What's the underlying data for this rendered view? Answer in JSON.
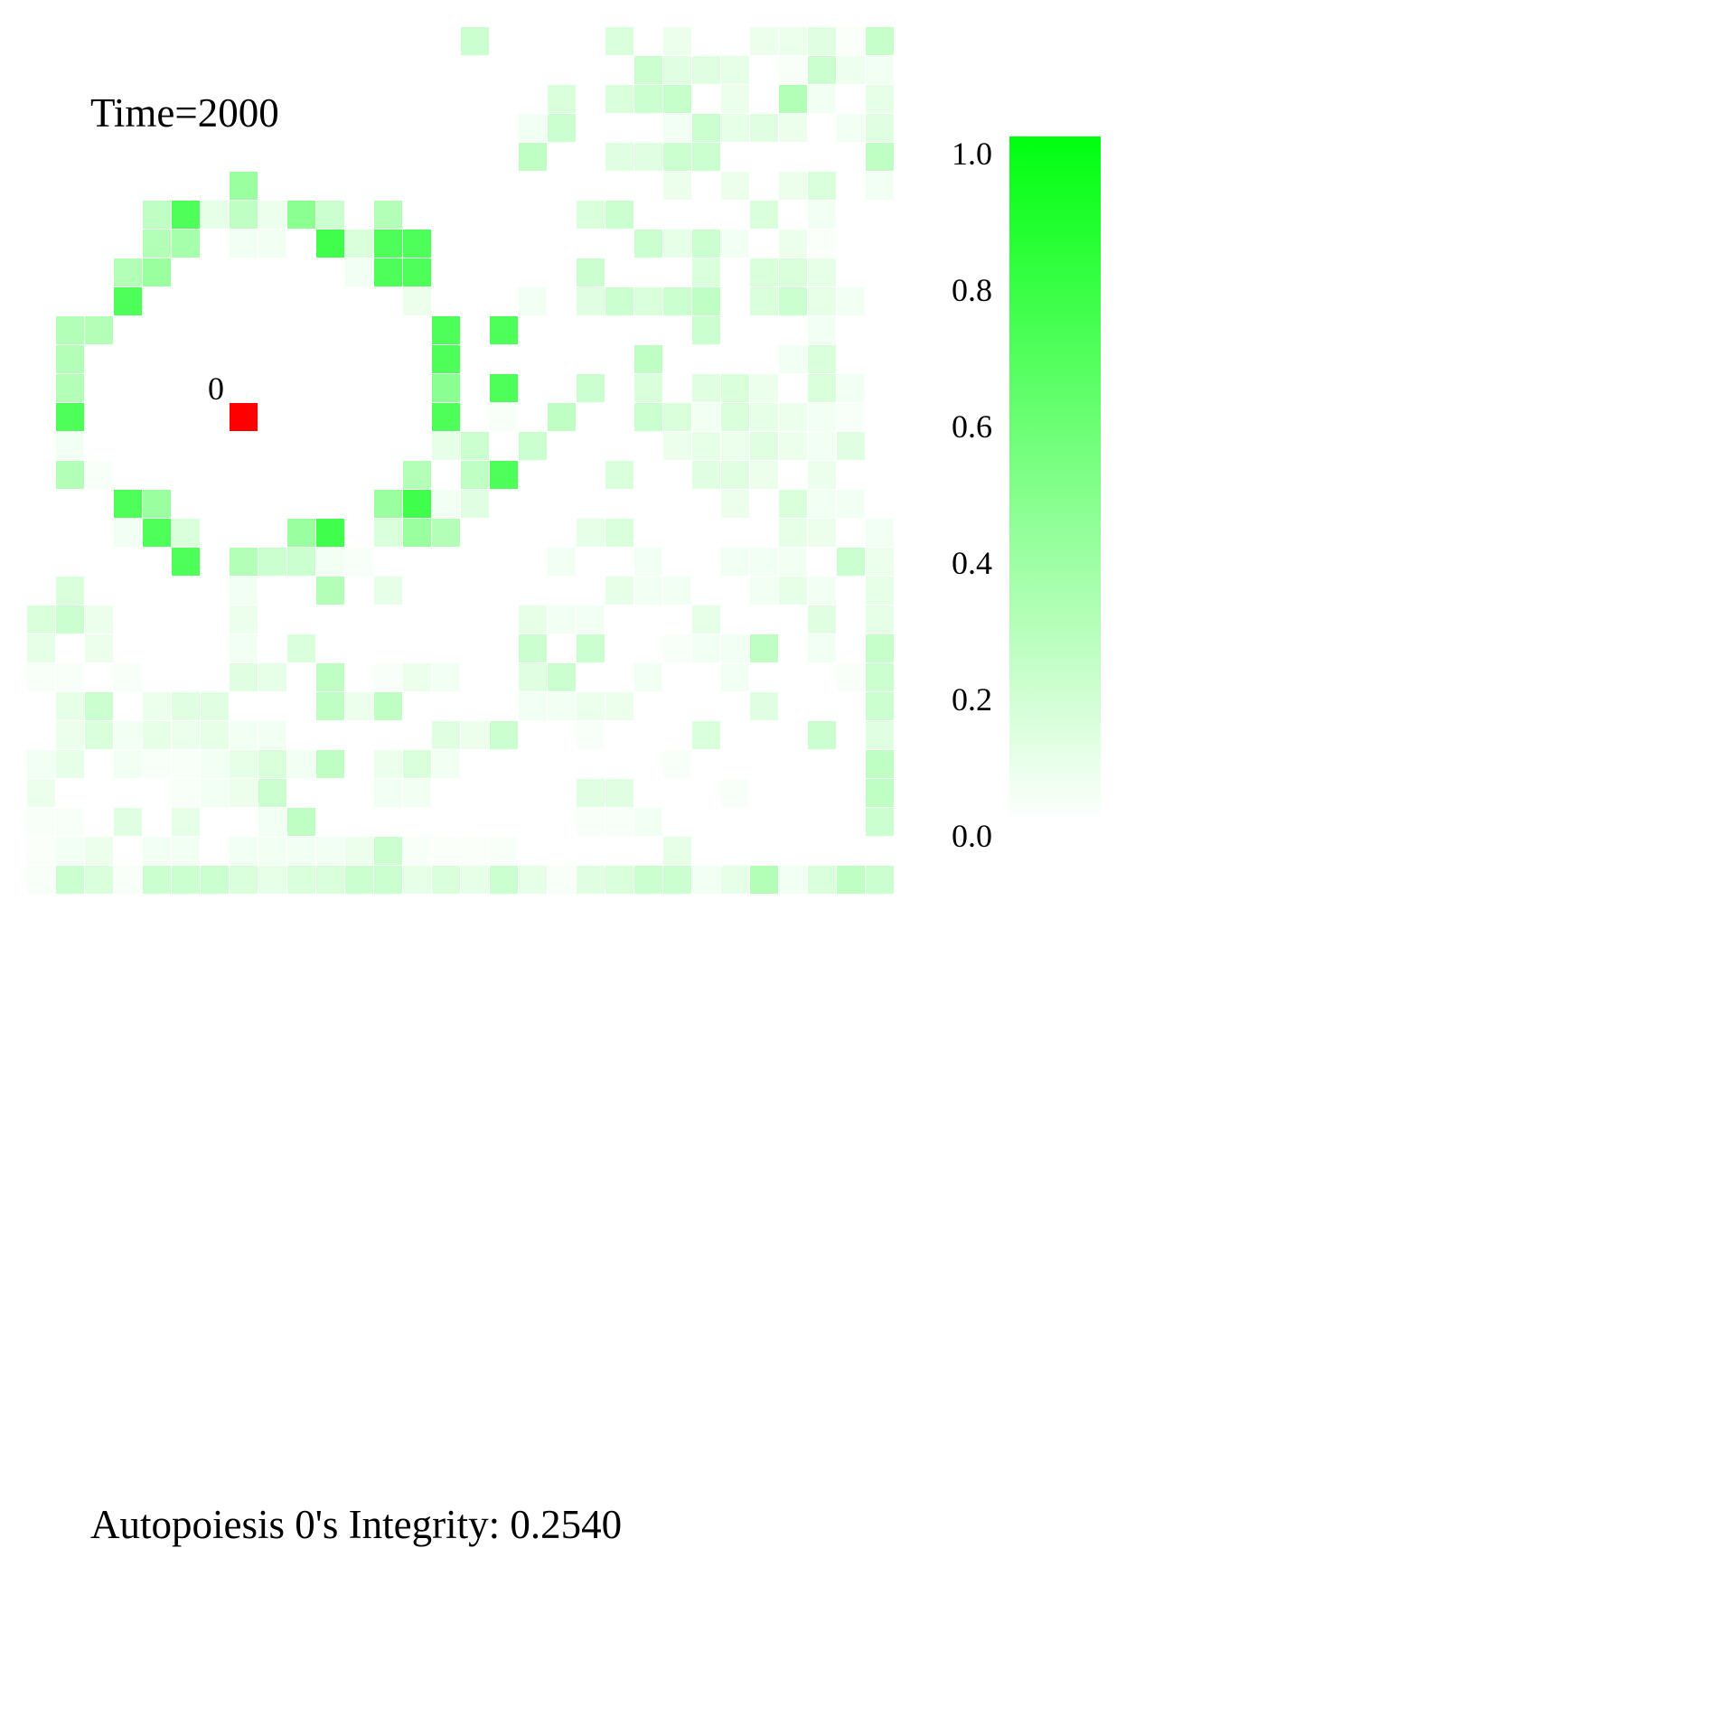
{
  "time_label": "Time=2000",
  "integrity_label": "Autopoiesis 0's Integrity: 0.2540",
  "chart_data": {
    "type": "heatmap",
    "title": "Time=2000",
    "grid": {
      "rows": 30,
      "cols": 30
    },
    "value_range": [
      0.0,
      1.0
    ],
    "colorbar": {
      "ticks": [
        0.0,
        0.2,
        0.4,
        0.6,
        0.8,
        1.0
      ],
      "tick_labels": [
        "0.0",
        "0.2",
        "0.4",
        "0.6",
        "0.8",
        "1.0"
      ],
      "color_low": "#ffffff",
      "color_high": "#00ff10"
    },
    "agents": [
      {
        "label": "0",
        "row": 13,
        "col": 7,
        "color": "#ff0000"
      }
    ],
    "values": [
      [
        0,
        0,
        0,
        0,
        0,
        0,
        0,
        0,
        0,
        0,
        0,
        0,
        0,
        0,
        0,
        0.2,
        0,
        0,
        0,
        0,
        0.15,
        0,
        0.08,
        0,
        0,
        0.08,
        0.08,
        0.12,
        0.02,
        0.22
      ],
      [
        0,
        0,
        0,
        0,
        0,
        0,
        0,
        0,
        0,
        0,
        0,
        0,
        0,
        0,
        0,
        0,
        0,
        0,
        0,
        0,
        0,
        0.2,
        0.12,
        0.12,
        0.1,
        0,
        0.03,
        0.2,
        0.07,
        0.05
      ],
      [
        0,
        0,
        0,
        0,
        0,
        0,
        0,
        0,
        0,
        0,
        0,
        0,
        0,
        0,
        0,
        0,
        0,
        0,
        0.15,
        0,
        0.15,
        0.2,
        0.22,
        0,
        0.08,
        0,
        0.3,
        0.05,
        0,
        0.1
      ],
      [
        0,
        0,
        0,
        0,
        0,
        0,
        0,
        0,
        0,
        0,
        0,
        0,
        0,
        0,
        0,
        0,
        0,
        0.05,
        0.2,
        0,
        0,
        0,
        0.05,
        0.2,
        0.1,
        0.12,
        0.08,
        0,
        0.05,
        0.12
      ],
      [
        0,
        0,
        0,
        0,
        0,
        0,
        0,
        0,
        0,
        0,
        0,
        0,
        0,
        0,
        0,
        0,
        0,
        0.25,
        0,
        0,
        0.12,
        0.12,
        0.2,
        0.2,
        0,
        0,
        0,
        0,
        0,
        0.25
      ],
      [
        0,
        0,
        0,
        0,
        0,
        0,
        0,
        0.4,
        0,
        0,
        0,
        0,
        0,
        0,
        0,
        0,
        0,
        0,
        0,
        0,
        0,
        0,
        0.08,
        0,
        0.08,
        0,
        0.08,
        0.15,
        0,
        0.05
      ],
      [
        0,
        0,
        0,
        0,
        0.25,
        0.7,
        0.1,
        0.25,
        0.08,
        0.45,
        0.2,
        0,
        0.3,
        0,
        0,
        0,
        0,
        0,
        0,
        0.15,
        0.2,
        0,
        0,
        0,
        0,
        0.15,
        0,
        0.05,
        0,
        0
      ],
      [
        0,
        0,
        0,
        0,
        0.3,
        0.35,
        0,
        0.05,
        0.05,
        0,
        0.75,
        0.15,
        0.7,
        0.7,
        0,
        0,
        0,
        0,
        0,
        0,
        0,
        0.2,
        0.1,
        0.2,
        0.05,
        0,
        0.08,
        0.02,
        0,
        0
      ],
      [
        0,
        0,
        0,
        0.3,
        0.4,
        0,
        0,
        0,
        0,
        0,
        0,
        0.05,
        0.7,
        0.7,
        0,
        0,
        0,
        0,
        0,
        0.2,
        0,
        0,
        0,
        0.15,
        0,
        0.15,
        0.15,
        0.1,
        0,
        0
      ],
      [
        0,
        0,
        0,
        0.7,
        0,
        0,
        0,
        0,
        0,
        0,
        0,
        0,
        0,
        0.08,
        0,
        0,
        0,
        0.05,
        0,
        0.12,
        0.2,
        0.15,
        0.2,
        0.25,
        0,
        0.15,
        0.2,
        0.1,
        0.05,
        0
      ],
      [
        0,
        0.3,
        0.3,
        0,
        0,
        0,
        0,
        0,
        0,
        0,
        0,
        0,
        0,
        0,
        0.7,
        0,
        0.7,
        0,
        0,
        0,
        0,
        0,
        0,
        0.2,
        0,
        0,
        0,
        0.05,
        0,
        0
      ],
      [
        0,
        0.3,
        0,
        0,
        0,
        0,
        0,
        0,
        0,
        0,
        0,
        0,
        0,
        0,
        0.7,
        0,
        0,
        0,
        0,
        0,
        0,
        0.25,
        0,
        0,
        0,
        0,
        0.05,
        0.15,
        0,
        0
      ],
      [
        0,
        0.3,
        0,
        0,
        0,
        0,
        0,
        0,
        0,
        0,
        0,
        0,
        0,
        0,
        0.45,
        0,
        0.7,
        0,
        0,
        0.2,
        0,
        0.15,
        0,
        0.12,
        0.15,
        0.08,
        0,
        0.15,
        0.05,
        0
      ],
      [
        0,
        0.7,
        0,
        0,
        0,
        0,
        0,
        0,
        0,
        0,
        0,
        0,
        0,
        0,
        0.7,
        0,
        0.03,
        0,
        0.25,
        0,
        0,
        0.2,
        0.15,
        0.05,
        0.15,
        0.1,
        0.08,
        0.05,
        0.03,
        0
      ],
      [
        0,
        0.05,
        0,
        0,
        0,
        0,
        0,
        0,
        0,
        0,
        0,
        0,
        0,
        0,
        0.1,
        0.2,
        0,
        0.2,
        0,
        0,
        0,
        0,
        0.08,
        0.1,
        0.08,
        0.12,
        0.08,
        0.05,
        0.12,
        0
      ],
      [
        0,
        0.3,
        0.03,
        0,
        0,
        0,
        0,
        0,
        0,
        0,
        0,
        0,
        0,
        0.3,
        0,
        0.25,
        0.7,
        0,
        0,
        0,
        0.15,
        0,
        0,
        0.12,
        0.12,
        0.08,
        0,
        0.08,
        0,
        0
      ],
      [
        0,
        0,
        0,
        0.7,
        0.4,
        0,
        0,
        0,
        0,
        0,
        0,
        0,
        0.4,
        0.75,
        0.05,
        0.12,
        0,
        0,
        0,
        0,
        0,
        0,
        0,
        0,
        0.08,
        0,
        0.15,
        0.05,
        0.05,
        0
      ],
      [
        0,
        0,
        0,
        0.05,
        0.7,
        0.15,
        0,
        0,
        0,
        0.4,
        0.75,
        0,
        0.15,
        0.4,
        0.3,
        0,
        0,
        0,
        0,
        0.1,
        0.15,
        0,
        0,
        0,
        0,
        0,
        0.1,
        0.08,
        0,
        0.05
      ],
      [
        0,
        0,
        0,
        0,
        0,
        0.7,
        0,
        0.3,
        0.2,
        0.2,
        0.05,
        0.03,
        0,
        0,
        0,
        0,
        0,
        0,
        0.05,
        0,
        0,
        0.05,
        0,
        0,
        0.05,
        0.05,
        0.05,
        0,
        0.2,
        0.08
      ],
      [
        0,
        0.15,
        0,
        0,
        0,
        0,
        0,
        0.05,
        0,
        0,
        0.3,
        0,
        0.1,
        0,
        0,
        0,
        0,
        0,
        0,
        0,
        0.1,
        0.05,
        0.05,
        0,
        0,
        0.05,
        0.1,
        0.05,
        0,
        0.1
      ],
      [
        0.15,
        0.2,
        0.08,
        0,
        0,
        0,
        0,
        0.08,
        0,
        0,
        0,
        0,
        0,
        0,
        0,
        0,
        0,
        0.1,
        0.05,
        0.05,
        0,
        0,
        0,
        0.1,
        0,
        0,
        0,
        0.12,
        0,
        0.1
      ],
      [
        0.1,
        0,
        0.08,
        0,
        0,
        0,
        0,
        0.05,
        0,
        0.15,
        0,
        0,
        0,
        0,
        0,
        0,
        0,
        0.2,
        0,
        0.2,
        0,
        0,
        0.03,
        0.05,
        0.05,
        0.25,
        0,
        0.05,
        0,
        0.22
      ],
      [
        0.03,
        0.03,
        0,
        0.03,
        0,
        0,
        0,
        0.12,
        0.1,
        0,
        0.25,
        0,
        0.03,
        0.08,
        0.05,
        0,
        0,
        0.12,
        0.2,
        0,
        0,
        0.05,
        0,
        0,
        0.05,
        0,
        0,
        0,
        0.03,
        0.2
      ],
      [
        0,
        0.1,
        0.2,
        0,
        0.08,
        0.12,
        0.12,
        0,
        0,
        0,
        0.25,
        0.08,
        0.25,
        0,
        0,
        0,
        0,
        0.05,
        0.05,
        0.08,
        0.08,
        0,
        0,
        0,
        0,
        0.12,
        0,
        0,
        0,
        0.2
      ],
      [
        0,
        0.08,
        0.15,
        0.05,
        0.1,
        0.08,
        0.1,
        0.05,
        0.05,
        0,
        0,
        0,
        0,
        0,
        0.12,
        0.08,
        0.2,
        0,
        0,
        0.03,
        0,
        0,
        0,
        0.15,
        0,
        0,
        0,
        0.2,
        0,
        0.12
      ],
      [
        0.05,
        0.1,
        0,
        0.05,
        0.03,
        0.03,
        0.05,
        0.1,
        0.15,
        0.05,
        0.25,
        0,
        0.08,
        0.15,
        0.05,
        0,
        0,
        0,
        0,
        0,
        0,
        0,
        0.03,
        0,
        0,
        0,
        0,
        0,
        0,
        0.25
      ],
      [
        0.08,
        0,
        0,
        0,
        0,
        0.03,
        0.05,
        0.08,
        0.2,
        0,
        0,
        0,
        0.05,
        0.05,
        0,
        0,
        0,
        0,
        0,
        0.12,
        0.12,
        0,
        0,
        0,
        0.03,
        0,
        0,
        0,
        0,
        0.25
      ],
      [
        0.03,
        0.03,
        0,
        0.12,
        0,
        0.1,
        0,
        0,
        0.05,
        0.25,
        0,
        0,
        0,
        0,
        0,
        0,
        0,
        0,
        0,
        0.03,
        0.03,
        0.05,
        0,
        0,
        0,
        0,
        0,
        0,
        0,
        0.2
      ],
      [
        0.02,
        0.05,
        0.08,
        0,
        0.05,
        0.05,
        0,
        0.05,
        0.05,
        0.05,
        0.05,
        0.08,
        0.2,
        0.03,
        0.02,
        0.02,
        0.03,
        0,
        0,
        0,
        0,
        0,
        0.1,
        0,
        0,
        0,
        0,
        0,
        0,
        0
      ],
      [
        0.03,
        0.2,
        0.15,
        0.03,
        0.2,
        0.2,
        0.2,
        0.15,
        0.1,
        0.15,
        0.15,
        0.2,
        0.2,
        0.1,
        0.15,
        0.1,
        0.2,
        0.1,
        0.03,
        0.12,
        0.15,
        0.2,
        0.2,
        0.05,
        0.1,
        0.3,
        0.05,
        0.15,
        0.25,
        0.2
      ]
    ]
  }
}
